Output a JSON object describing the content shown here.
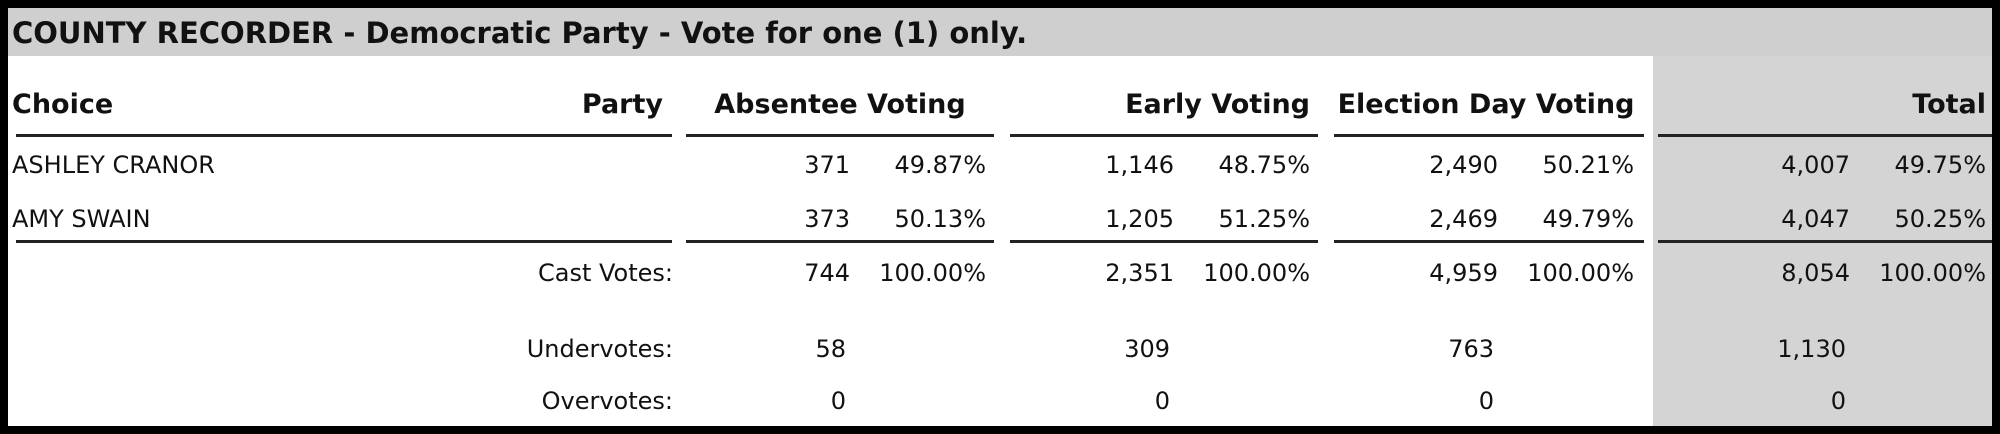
{
  "title": "COUNTY RECORDER - Democratic Party - Vote for one (1) only.",
  "table": {
    "headers": [
      "Choice",
      "Party",
      "Absentee Voting",
      "Early Voting",
      "Election Day Voting",
      "Total"
    ],
    "rows": [
      [
        "ASHLEY CRANOR",
        "371",
        "49.87%",
        "1,146",
        "48.75%",
        "2,490",
        "50.21%",
        "4,007",
        "49.75%"
      ],
      [
        "AMY SWAIN",
        "373",
        "50.13%",
        "1,205",
        "51.25%",
        "2,469",
        "49.79%",
        "4,047",
        "50.25%"
      ]
    ],
    "summary": [
      [
        "Cast Votes:",
        "744",
        "100.00%",
        "2,351",
        "100.00%",
        "4,959",
        "100.00%",
        "8,054",
        "100.00%"
      ],
      [
        "Undervotes:",
        "58",
        "309",
        "763",
        "1,130"
      ],
      [
        "Overvotes:",
        "0",
        "0",
        "0",
        "0"
      ]
    ]
  }
}
